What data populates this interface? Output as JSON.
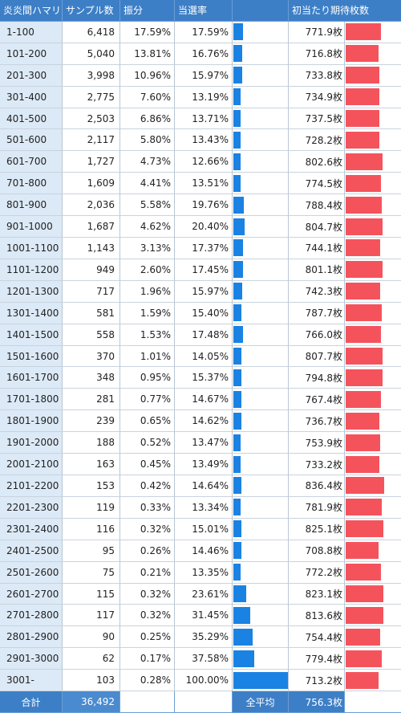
{
  "headers": {
    "hamari": "炎炎間ハマリ",
    "samples": "サンプル数",
    "share": "振分",
    "rate": "当選率",
    "bar": "",
    "expected": "初当たり期待枚数"
  },
  "colors": {
    "header_bg": "#3d7fc6",
    "range_bg": "#dce9f6",
    "rate_bar": "#1a82e2",
    "expected_bar": "#f5535c"
  },
  "bar_scale": {
    "rate_full_percent": 100,
    "expected_max_count": 836.4
  },
  "rows": [
    {
      "range": "1-100",
      "samples": "6,418",
      "share": "17.59%",
      "rate": "17.59%",
      "rate_value": 17.59,
      "expected": "771.9枚",
      "expected_value": 771.9
    },
    {
      "range": "101-200",
      "samples": "5,040",
      "share": "13.81%",
      "rate": "16.76%",
      "rate_value": 16.76,
      "expected": "716.8枚",
      "expected_value": 716.8
    },
    {
      "range": "201-300",
      "samples": "3,998",
      "share": "10.96%",
      "rate": "15.97%",
      "rate_value": 15.97,
      "expected": "733.8枚",
      "expected_value": 733.8
    },
    {
      "range": "301-400",
      "samples": "2,775",
      "share": "7.60%",
      "rate": "13.19%",
      "rate_value": 13.19,
      "expected": "734.9枚",
      "expected_value": 734.9
    },
    {
      "range": "401-500",
      "samples": "2,503",
      "share": "6.86%",
      "rate": "13.71%",
      "rate_value": 13.71,
      "expected": "737.5枚",
      "expected_value": 737.5
    },
    {
      "range": "501-600",
      "samples": "2,117",
      "share": "5.80%",
      "rate": "13.43%",
      "rate_value": 13.43,
      "expected": "728.2枚",
      "expected_value": 728.2
    },
    {
      "range": "601-700",
      "samples": "1,727",
      "share": "4.73%",
      "rate": "12.66%",
      "rate_value": 12.66,
      "expected": "802.6枚",
      "expected_value": 802.6
    },
    {
      "range": "701-800",
      "samples": "1,609",
      "share": "4.41%",
      "rate": "13.51%",
      "rate_value": 13.51,
      "expected": "774.5枚",
      "expected_value": 774.5
    },
    {
      "range": "801-900",
      "samples": "2,036",
      "share": "5.58%",
      "rate": "19.76%",
      "rate_value": 19.76,
      "expected": "788.4枚",
      "expected_value": 788.4
    },
    {
      "range": "901-1000",
      "samples": "1,687",
      "share": "4.62%",
      "rate": "20.40%",
      "rate_value": 20.4,
      "expected": "804.7枚",
      "expected_value": 804.7
    },
    {
      "range": "1001-1100",
      "samples": "1,143",
      "share": "3.13%",
      "rate": "17.37%",
      "rate_value": 17.37,
      "expected": "744.1枚",
      "expected_value": 744.1
    },
    {
      "range": "1101-1200",
      "samples": "949",
      "share": "2.60%",
      "rate": "17.45%",
      "rate_value": 17.45,
      "expected": "801.1枚",
      "expected_value": 801.1
    },
    {
      "range": "1201-1300",
      "samples": "717",
      "share": "1.96%",
      "rate": "15.97%",
      "rate_value": 15.97,
      "expected": "742.3枚",
      "expected_value": 742.3
    },
    {
      "range": "1301-1400",
      "samples": "581",
      "share": "1.59%",
      "rate": "15.40%",
      "rate_value": 15.4,
      "expected": "787.7枚",
      "expected_value": 787.7
    },
    {
      "range": "1401-1500",
      "samples": "558",
      "share": "1.53%",
      "rate": "17.48%",
      "rate_value": 17.48,
      "expected": "766.0枚",
      "expected_value": 766.0
    },
    {
      "range": "1501-1600",
      "samples": "370",
      "share": "1.01%",
      "rate": "14.05%",
      "rate_value": 14.05,
      "expected": "807.7枚",
      "expected_value": 807.7
    },
    {
      "range": "1601-1700",
      "samples": "348",
      "share": "0.95%",
      "rate": "15.37%",
      "rate_value": 15.37,
      "expected": "794.8枚",
      "expected_value": 794.8
    },
    {
      "range": "1701-1800",
      "samples": "281",
      "share": "0.77%",
      "rate": "14.67%",
      "rate_value": 14.67,
      "expected": "767.4枚",
      "expected_value": 767.4
    },
    {
      "range": "1801-1900",
      "samples": "239",
      "share": "0.65%",
      "rate": "14.62%",
      "rate_value": 14.62,
      "expected": "736.7枚",
      "expected_value": 736.7
    },
    {
      "range": "1901-2000",
      "samples": "188",
      "share": "0.52%",
      "rate": "13.47%",
      "rate_value": 13.47,
      "expected": "753.9枚",
      "expected_value": 753.9
    },
    {
      "range": "2001-2100",
      "samples": "163",
      "share": "0.45%",
      "rate": "13.49%",
      "rate_value": 13.49,
      "expected": "733.2枚",
      "expected_value": 733.2
    },
    {
      "range": "2101-2200",
      "samples": "153",
      "share": "0.42%",
      "rate": "14.64%",
      "rate_value": 14.64,
      "expected": "836.4枚",
      "expected_value": 836.4
    },
    {
      "range": "2201-2300",
      "samples": "119",
      "share": "0.33%",
      "rate": "13.34%",
      "rate_value": 13.34,
      "expected": "781.9枚",
      "expected_value": 781.9
    },
    {
      "range": "2301-2400",
      "samples": "116",
      "share": "0.32%",
      "rate": "15.01%",
      "rate_value": 15.01,
      "expected": "825.1枚",
      "expected_value": 825.1
    },
    {
      "range": "2401-2500",
      "samples": "95",
      "share": "0.26%",
      "rate": "14.46%",
      "rate_value": 14.46,
      "expected": "708.8枚",
      "expected_value": 708.8
    },
    {
      "range": "2501-2600",
      "samples": "75",
      "share": "0.21%",
      "rate": "13.35%",
      "rate_value": 13.35,
      "expected": "772.2枚",
      "expected_value": 772.2
    },
    {
      "range": "2601-2700",
      "samples": "115",
      "share": "0.32%",
      "rate": "23.61%",
      "rate_value": 23.61,
      "expected": "823.1枚",
      "expected_value": 823.1
    },
    {
      "range": "2701-2800",
      "samples": "117",
      "share": "0.32%",
      "rate": "31.45%",
      "rate_value": 31.45,
      "expected": "813.6枚",
      "expected_value": 813.6
    },
    {
      "range": "2801-2900",
      "samples": "90",
      "share": "0.25%",
      "rate": "35.29%",
      "rate_value": 35.29,
      "expected": "754.4枚",
      "expected_value": 754.4
    },
    {
      "range": "2901-3000",
      "samples": "62",
      "share": "0.17%",
      "rate": "37.58%",
      "rate_value": 37.58,
      "expected": "779.4枚",
      "expected_value": 779.4
    },
    {
      "range": "3001-",
      "samples": "103",
      "share": "0.28%",
      "rate": "100.00%",
      "rate_value": 100.0,
      "expected": "713.2枚",
      "expected_value": 713.2
    }
  ],
  "footer": {
    "total_label": "合計",
    "total_samples": "36,492",
    "average_label": "全平均",
    "average_expected": "756.3枚"
  }
}
